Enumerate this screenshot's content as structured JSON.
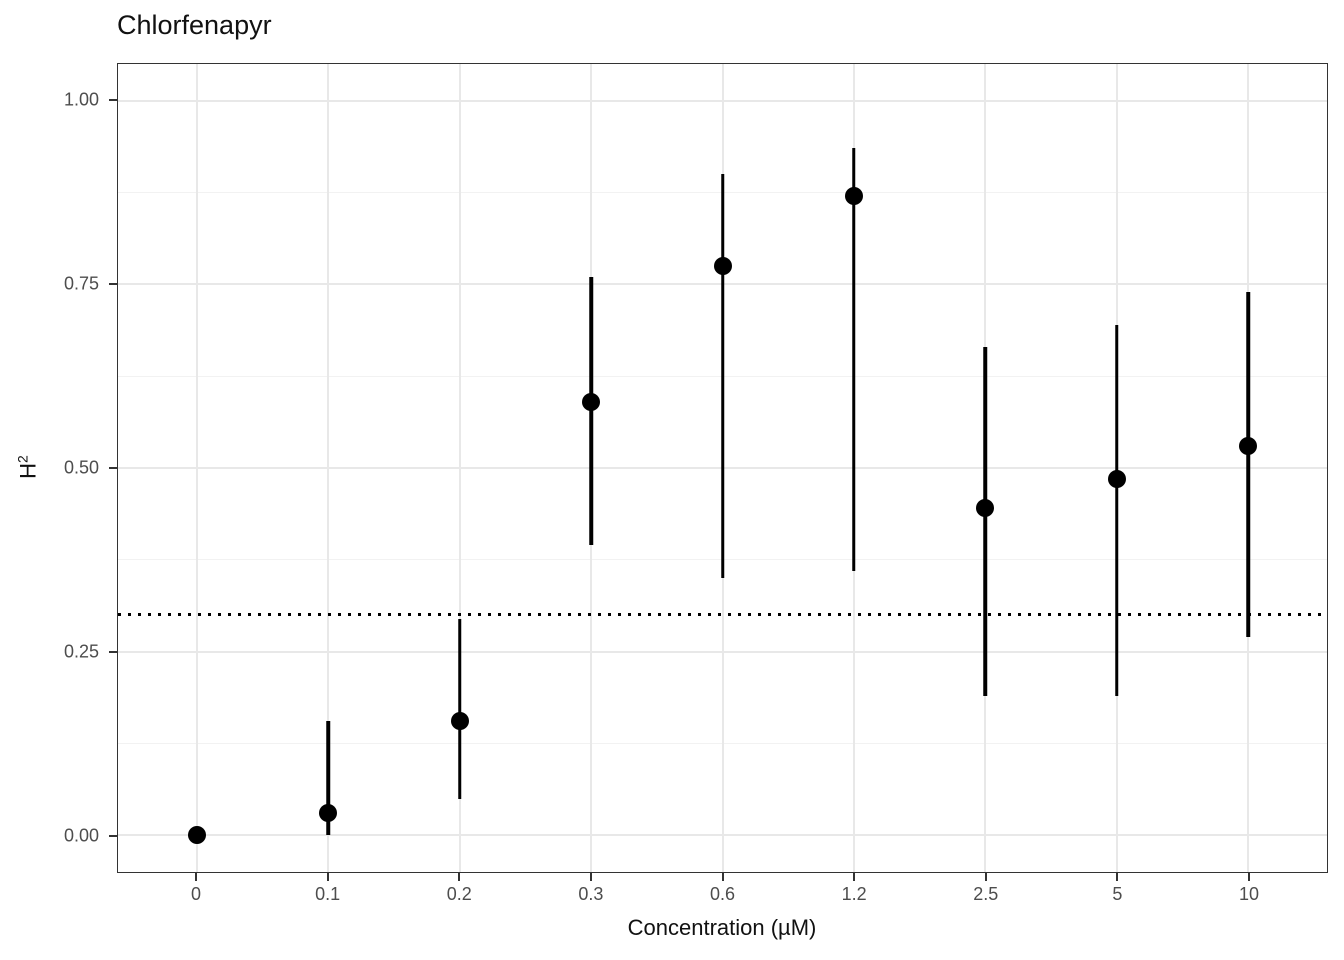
{
  "chart_data": {
    "type": "scatter",
    "subtype": "pointrange",
    "title": "Chlorfenapyr",
    "xlabel": "Concentration (µM)",
    "ylabel_base": "H",
    "ylabel_exponent": "2",
    "categories": [
      "0",
      "0.1",
      "0.2",
      "0.3",
      "0.6",
      "1.2",
      "2.5",
      "5",
      "10"
    ],
    "points": [
      {
        "x": "0",
        "y": 0.0,
        "ymin": 0.0,
        "ymax": 0.0
      },
      {
        "x": "0.1",
        "y": 0.03,
        "ymin": 0.0,
        "ymax": 0.155
      },
      {
        "x": "0.2",
        "y": 0.155,
        "ymin": 0.05,
        "ymax": 0.295
      },
      {
        "x": "0.3",
        "y": 0.59,
        "ymin": 0.395,
        "ymax": 0.76
      },
      {
        "x": "0.6",
        "y": 0.775,
        "ymin": 0.35,
        "ymax": 0.9
      },
      {
        "x": "1.2",
        "y": 0.87,
        "ymin": 0.36,
        "ymax": 0.935
      },
      {
        "x": "2.5",
        "y": 0.445,
        "ymin": 0.19,
        "ymax": 0.665
      },
      {
        "x": "5",
        "y": 0.485,
        "ymin": 0.19,
        "ymax": 0.695
      },
      {
        "x": "10",
        "y": 0.53,
        "ymin": 0.27,
        "ymax": 0.74
      }
    ],
    "reference_line": {
      "y": 0.3,
      "style": "dotted",
      "color": "#000000"
    },
    "y_ticks": [
      {
        "value": 0.0,
        "label": "0.00"
      },
      {
        "value": 0.25,
        "label": "0.25"
      },
      {
        "value": 0.5,
        "label": "0.50"
      },
      {
        "value": 0.75,
        "label": "0.75"
      },
      {
        "value": 1.0,
        "label": "1.00"
      }
    ],
    "y_minor_values": [
      0.125,
      0.375,
      0.625,
      0.875
    ],
    "ylim": [
      -0.05,
      1.05
    ],
    "x_expansion": 0.6,
    "grid": true,
    "legend": "none",
    "colors": {
      "point": "#000000",
      "error_bar": "#000000",
      "grid_major": "#e8e8e8",
      "grid_minor": "#f2f2f2",
      "panel_border": "#333333",
      "axis_text": "#4d4d4d",
      "title_text": "#111111",
      "background": "#ffffff"
    }
  }
}
